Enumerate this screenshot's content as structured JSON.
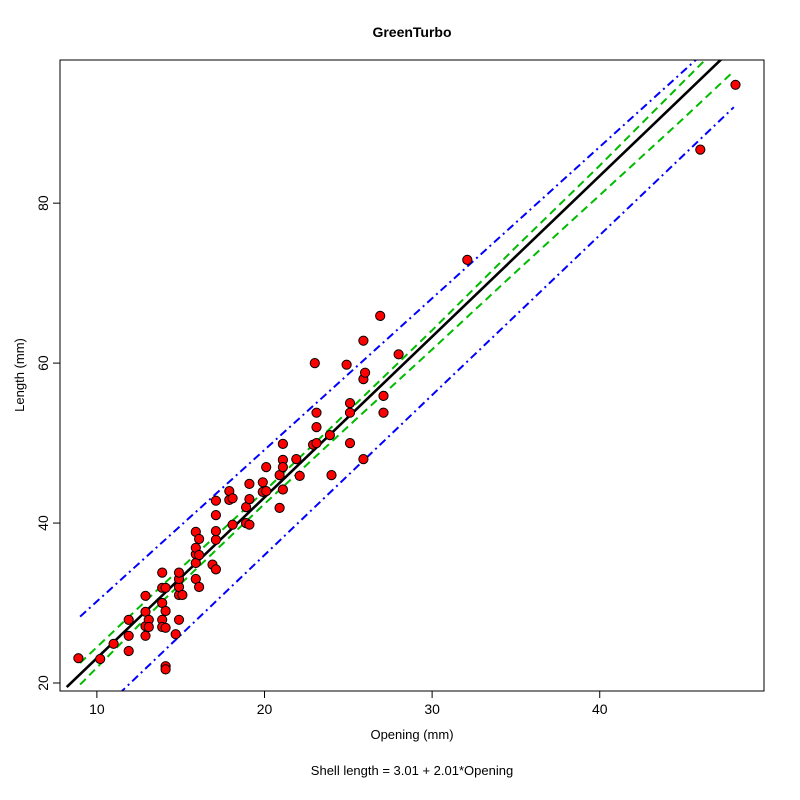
{
  "chart_data": {
    "type": "scatter",
    "title": "GreenTurbo",
    "xlabel": "Opening (mm)",
    "ylabel": "Length (mm)",
    "caption": "Shell length = 3.01 + 2.01*Opening",
    "xlim": [
      7.8,
      49.8
    ],
    "ylim": [
      19.0,
      97.9
    ],
    "x_ticks": [
      10,
      20,
      30,
      40
    ],
    "y_ticks": [
      20,
      40,
      60,
      80
    ],
    "grid": false,
    "legend": "none",
    "colors": {
      "points_fill": "#ff0000",
      "points_stroke": "#000000",
      "fit_line": "#000000",
      "confidence_band": "#00bb00",
      "prediction_band": "#0000ff"
    },
    "fit": {
      "intercept": 3.01,
      "slope": 2.01,
      "x_range": [
        8.2,
        47.3
      ]
    },
    "confidence_band": {
      "x": [
        9.0,
        14.0,
        20.0,
        25.0,
        30.0,
        35.0,
        40.0,
        45.0,
        48.0
      ],
      "upper": [
        22.5,
        32.4,
        44.0,
        54.0,
        64.1,
        74.5,
        84.7,
        95.2,
        101.5
      ],
      "lower": [
        19.8,
        30.4,
        42.4,
        52.1,
        61.7,
        71.4,
        81.0,
        90.6,
        96.5
      ]
    },
    "prediction_band": {
      "x": [
        9.0,
        48.0
      ],
      "upper": [
        28.3,
        102.2
      ],
      "lower": [
        14.0,
        92.0
      ]
    },
    "points": [
      {
        "x": 8.9,
        "y": 23.1
      },
      {
        "x": 10.2,
        "y": 23.0
      },
      {
        "x": 11.0,
        "y": 24.9
      },
      {
        "x": 11.9,
        "y": 25.9
      },
      {
        "x": 11.9,
        "y": 24.0
      },
      {
        "x": 11.9,
        "y": 27.9
      },
      {
        "x": 12.9,
        "y": 25.9
      },
      {
        "x": 12.9,
        "y": 27.1
      },
      {
        "x": 12.9,
        "y": 28.9
      },
      {
        "x": 12.9,
        "y": 30.9
      },
      {
        "x": 13.1,
        "y": 27.9
      },
      {
        "x": 13.1,
        "y": 27.0
      },
      {
        "x": 13.9,
        "y": 27.9
      },
      {
        "x": 13.9,
        "y": 27.0
      },
      {
        "x": 13.9,
        "y": 30.0
      },
      {
        "x": 13.9,
        "y": 31.9
      },
      {
        "x": 13.9,
        "y": 33.8
      },
      {
        "x": 14.1,
        "y": 22.1
      },
      {
        "x": 14.1,
        "y": 21.7
      },
      {
        "x": 14.1,
        "y": 26.9
      },
      {
        "x": 14.1,
        "y": 29.0
      },
      {
        "x": 14.1,
        "y": 31.9
      },
      {
        "x": 14.7,
        "y": 26.1
      },
      {
        "x": 14.9,
        "y": 27.9
      },
      {
        "x": 14.9,
        "y": 31.0
      },
      {
        "x": 14.9,
        "y": 32.0
      },
      {
        "x": 14.9,
        "y": 33.0
      },
      {
        "x": 14.9,
        "y": 33.8
      },
      {
        "x": 15.1,
        "y": 31.0
      },
      {
        "x": 15.9,
        "y": 33.0
      },
      {
        "x": 15.9,
        "y": 35.0
      },
      {
        "x": 15.9,
        "y": 36.1
      },
      {
        "x": 15.9,
        "y": 36.9
      },
      {
        "x": 15.9,
        "y": 38.9
      },
      {
        "x": 16.1,
        "y": 32.0
      },
      {
        "x": 16.1,
        "y": 36.0
      },
      {
        "x": 16.1,
        "y": 38.0
      },
      {
        "x": 16.9,
        "y": 34.8
      },
      {
        "x": 17.1,
        "y": 34.2
      },
      {
        "x": 17.1,
        "y": 37.9
      },
      {
        "x": 17.1,
        "y": 39.0
      },
      {
        "x": 17.1,
        "y": 41.0
      },
      {
        "x": 17.1,
        "y": 42.8
      },
      {
        "x": 17.9,
        "y": 44.0
      },
      {
        "x": 17.9,
        "y": 42.9
      },
      {
        "x": 18.1,
        "y": 39.8
      },
      {
        "x": 18.1,
        "y": 43.1
      },
      {
        "x": 18.9,
        "y": 42.0
      },
      {
        "x": 18.9,
        "y": 40.0
      },
      {
        "x": 19.1,
        "y": 43.0
      },
      {
        "x": 19.1,
        "y": 44.9
      },
      {
        "x": 19.1,
        "y": 39.8
      },
      {
        "x": 19.9,
        "y": 43.9
      },
      {
        "x": 19.9,
        "y": 45.1
      },
      {
        "x": 20.1,
        "y": 44.0
      },
      {
        "x": 20.1,
        "y": 47.0
      },
      {
        "x": 20.9,
        "y": 41.9
      },
      {
        "x": 20.9,
        "y": 46.0
      },
      {
        "x": 21.1,
        "y": 44.2
      },
      {
        "x": 21.1,
        "y": 47.9
      },
      {
        "x": 21.1,
        "y": 49.9
      },
      {
        "x": 21.1,
        "y": 47.0
      },
      {
        "x": 21.9,
        "y": 48.0
      },
      {
        "x": 22.1,
        "y": 45.9
      },
      {
        "x": 22.9,
        "y": 49.8
      },
      {
        "x": 23.0,
        "y": 60.0
      },
      {
        "x": 23.1,
        "y": 52.0
      },
      {
        "x": 23.1,
        "y": 53.8
      },
      {
        "x": 23.1,
        "y": 50.0
      },
      {
        "x": 23.9,
        "y": 51.0
      },
      {
        "x": 24.0,
        "y": 46.0
      },
      {
        "x": 24.9,
        "y": 59.8
      },
      {
        "x": 25.1,
        "y": 50.0
      },
      {
        "x": 25.1,
        "y": 53.8
      },
      {
        "x": 25.1,
        "y": 55.0
      },
      {
        "x": 25.9,
        "y": 62.8
      },
      {
        "x": 25.9,
        "y": 58.0
      },
      {
        "x": 25.9,
        "y": 48.0
      },
      {
        "x": 26.0,
        "y": 58.8
      },
      {
        "x": 26.9,
        "y": 65.9
      },
      {
        "x": 27.1,
        "y": 53.8
      },
      {
        "x": 27.1,
        "y": 55.9
      },
      {
        "x": 28.0,
        "y": 61.1
      },
      {
        "x": 32.1,
        "y": 72.9
      },
      {
        "x": 46.0,
        "y": 86.7
      },
      {
        "x": 48.1,
        "y": 94.8
      }
    ]
  }
}
